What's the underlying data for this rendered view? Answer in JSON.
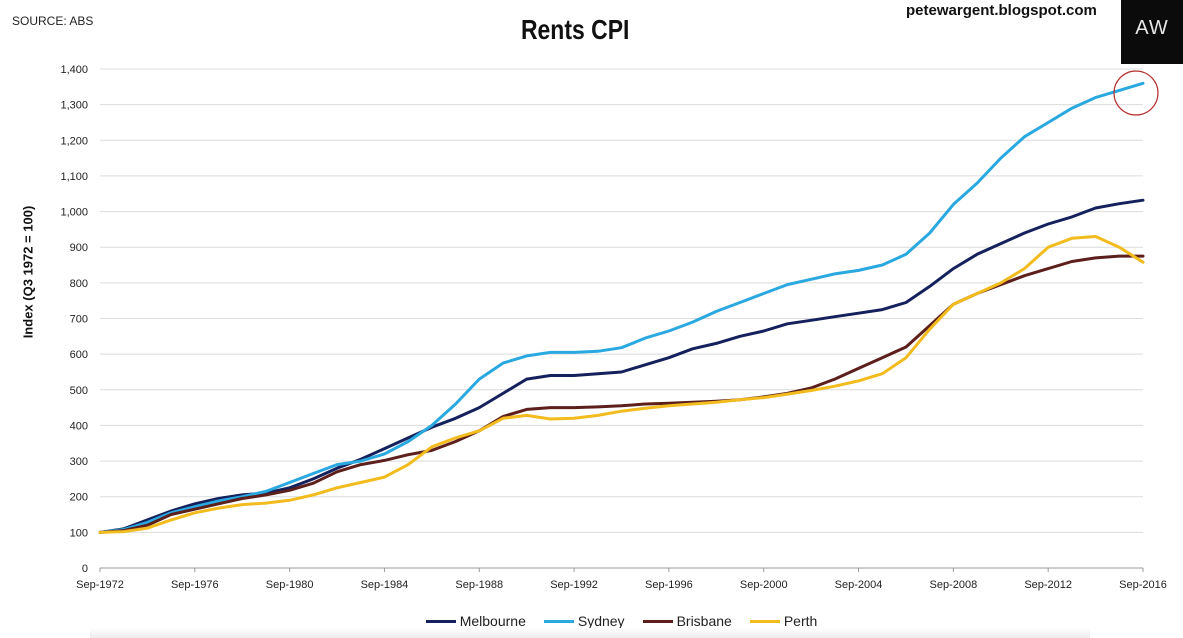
{
  "header": {
    "source": "SOURCE: ABS",
    "blog": "petewargent.blogspot.com",
    "logo_text": "AW"
  },
  "chart_data": {
    "type": "line",
    "title": "Rents CPI",
    "xlabel": "",
    "ylabel": "Index (Q3 1972 = 100)",
    "ylim": [
      0,
      1400
    ],
    "yticks": [
      "0",
      "100",
      "200",
      "300",
      "400",
      "500",
      "600",
      "700",
      "800",
      "900",
      "1,000",
      "1,100",
      "1,200",
      "1,300",
      "1,400"
    ],
    "xlim": [
      1972.67,
      2016.67
    ],
    "xticks": [
      "Sep-1972",
      "Sep-1976",
      "Sep-1980",
      "Sep-1984",
      "Sep-1988",
      "Sep-1992",
      "Sep-1996",
      "Sep-2000",
      "Sep-2004",
      "Sep-2008",
      "Sep-2012",
      "Sep-2016"
    ],
    "grid": "horizontal",
    "legend_position": "bottom",
    "colors": {
      "Melbourne": "#14215c",
      "Sydney": "#2aa8e0",
      "Brisbane": "#5c1f1c",
      "Perth": "#f2bb1e",
      "highlight_circle": "#b83030"
    },
    "x": [
      1972.67,
      1973.67,
      1974.67,
      1975.67,
      1976.67,
      1977.67,
      1978.67,
      1979.67,
      1980.67,
      1981.67,
      1982.67,
      1983.67,
      1984.67,
      1985.67,
      1986.67,
      1987.67,
      1988.67,
      1989.67,
      1990.67,
      1991.67,
      1992.67,
      1993.67,
      1994.67,
      1995.67,
      1996.67,
      1997.67,
      1998.67,
      1999.67,
      2000.67,
      2001.67,
      2002.67,
      2003.67,
      2004.67,
      2005.67,
      2006.67,
      2007.67,
      2008.67,
      2009.67,
      2010.67,
      2011.67,
      2012.67,
      2013.67,
      2014.67,
      2015.67,
      2016.67
    ],
    "series": [
      {
        "name": "Melbourne",
        "values": [
          100,
          110,
          135,
          160,
          180,
          195,
          205,
          210,
          225,
          250,
          280,
          305,
          335,
          365,
          395,
          420,
          450,
          490,
          530,
          540,
          540,
          545,
          550,
          570,
          590,
          615,
          630,
          650,
          665,
          685,
          695,
          705,
          715,
          725,
          745,
          790,
          840,
          880,
          910,
          940,
          965,
          985,
          1010,
          1022,
          1032
        ]
      },
      {
        "name": "Sydney",
        "values": [
          100,
          108,
          128,
          155,
          172,
          188,
          200,
          215,
          240,
          265,
          290,
          300,
          320,
          355,
          400,
          460,
          530,
          575,
          595,
          605,
          605,
          608,
          618,
          645,
          665,
          690,
          720,
          745,
          770,
          795,
          810,
          825,
          835,
          850,
          880,
          940,
          1020,
          1080,
          1150,
          1210,
          1250,
          1290,
          1320,
          1340,
          1360
        ]
      },
      {
        "name": "Brisbane",
        "values": [
          100,
          105,
          120,
          150,
          165,
          180,
          195,
          205,
          218,
          238,
          270,
          290,
          302,
          318,
          330,
          355,
          385,
          425,
          445,
          450,
          450,
          452,
          455,
          460,
          462,
          465,
          468,
          472,
          480,
          490,
          505,
          530,
          560,
          590,
          620,
          680,
          740,
          770,
          795,
          820,
          840,
          860,
          870,
          875,
          875
        ]
      },
      {
        "name": "Perth",
        "values": [
          100,
          102,
          112,
          135,
          155,
          168,
          178,
          182,
          190,
          205,
          225,
          240,
          255,
          290,
          340,
          365,
          385,
          420,
          428,
          418,
          420,
          428,
          440,
          448,
          455,
          460,
          465,
          472,
          478,
          488,
          498,
          510,
          525,
          545,
          590,
          670,
          740,
          770,
          800,
          840,
          900,
          925,
          930,
          900,
          858
        ]
      }
    ]
  }
}
